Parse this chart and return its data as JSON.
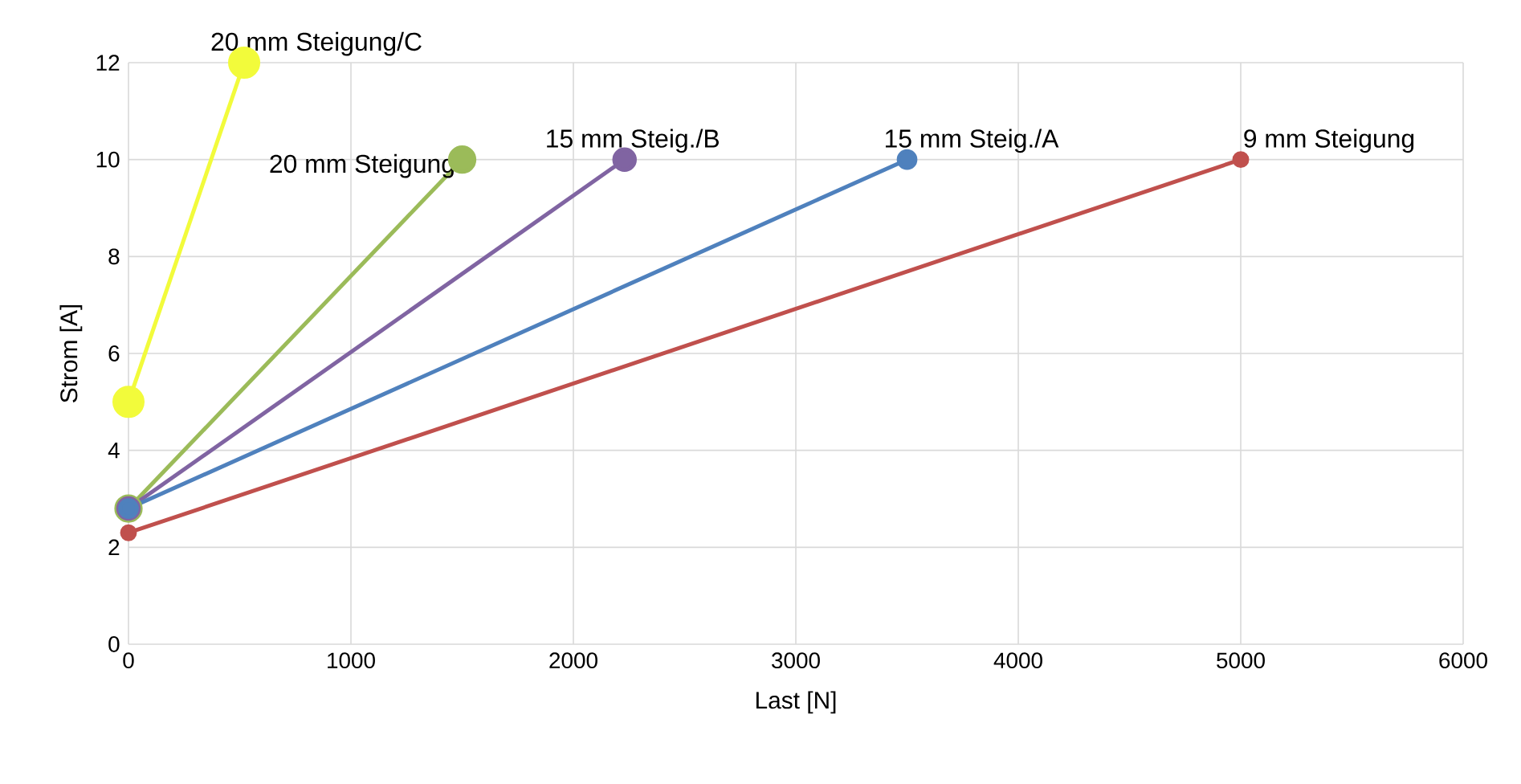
{
  "chart_data": {
    "type": "line",
    "xlabel": "Last [N]",
    "ylabel": "Strom [A]",
    "series": [
      {
        "name": "20 mm Steigung/C",
        "color": "#f2fb3b",
        "x": [
          0,
          520
        ],
        "values": [
          5,
          12
        ]
      },
      {
        "name": "20 mm Steigung",
        "color": "#9bbb59",
        "x": [
          0,
          1500
        ],
        "values": [
          2.8,
          10
        ]
      },
      {
        "name": "15 mm Steig./B",
        "color": "#8064a2",
        "x": [
          0,
          2230
        ],
        "values": [
          2.8,
          10
        ]
      },
      {
        "name": "15 mm Steig./A",
        "color": "#4f81bd",
        "x": [
          0,
          3500
        ],
        "values": [
          2.8,
          10
        ]
      },
      {
        "name": "9 mm Steigung",
        "color": "#c0504d",
        "x": [
          0,
          5000
        ],
        "values": [
          2.3,
          10
        ]
      }
    ],
    "xlim": [
      0,
      6000
    ],
    "ylim": [
      0,
      12
    ],
    "xticks": [
      0,
      1000,
      2000,
      3000,
      4000,
      5000,
      6000
    ],
    "yticks": [
      0,
      2,
      4,
      6,
      8,
      10,
      12
    ],
    "grid": true,
    "legend": false,
    "marker": "circle",
    "line_style": "solid"
  }
}
